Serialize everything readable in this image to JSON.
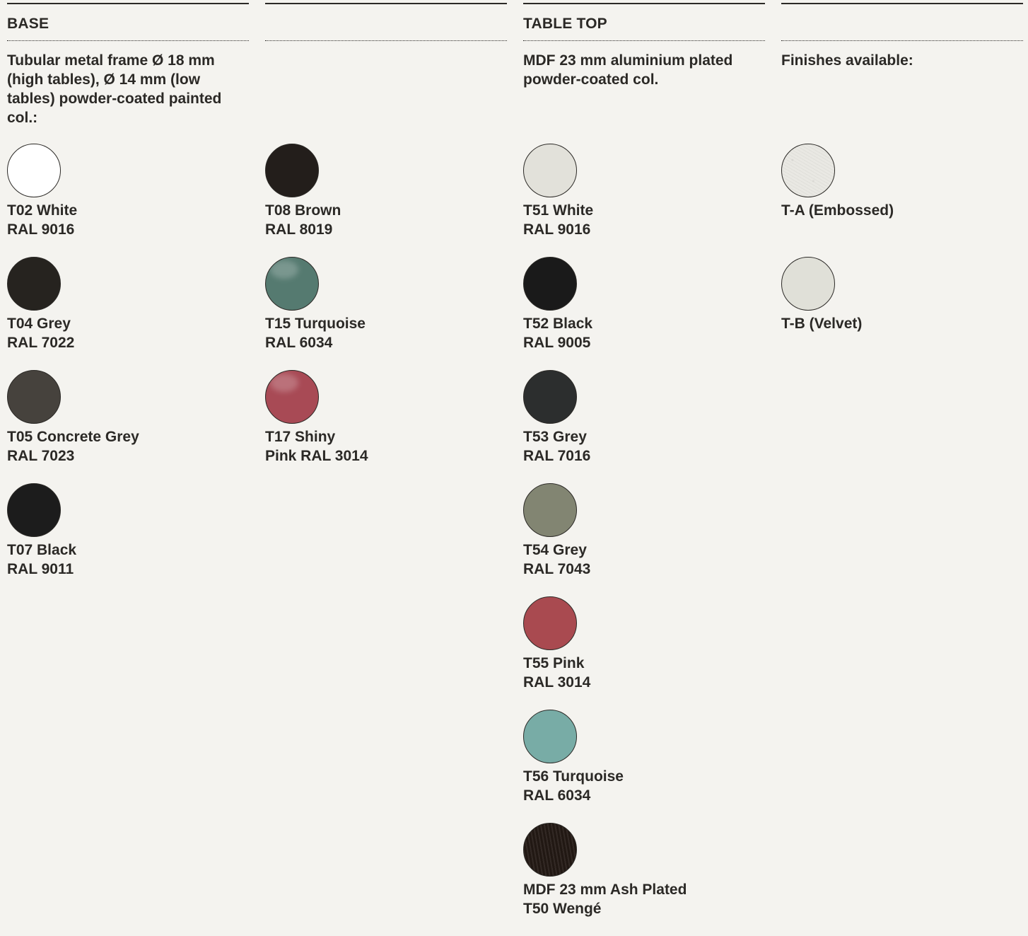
{
  "columns": [
    {
      "heading": "BASE",
      "description": "Tubular metal frame Ø 18 mm (high tables), Ø 14 mm (low tables) powder-coated painted col.:",
      "swatches": [
        {
          "code": "T02 White",
          "ref": "RAL 9016",
          "color": "#ffffff",
          "finish": "plain"
        },
        {
          "code": "T04 Grey",
          "ref": "RAL 7022",
          "color": "#26231f",
          "finish": "plain"
        },
        {
          "code": "T05 Concrete Grey",
          "ref": "RAL 7023",
          "color": "#46423d",
          "finish": "plain"
        },
        {
          "code": "T07 Black",
          "ref": "RAL 9011",
          "color": "#1c1c1c",
          "finish": "plain"
        }
      ]
    },
    {
      "heading": "",
      "description": "",
      "swatches": [
        {
          "code": "T08 Brown",
          "ref": "RAL 8019",
          "color": "#231e1b",
          "finish": "plain"
        },
        {
          "code": "T15 Turquoise",
          "ref": "RAL 6034",
          "color": "#557a70",
          "finish": "gloss"
        },
        {
          "code": "T17 Shiny",
          "ref": "Pink RAL 3014",
          "color": "#a84a55",
          "finish": "gloss"
        }
      ]
    },
    {
      "heading": "TABLE TOP",
      "description": "MDF 23 mm aluminium plated powder-coated col.",
      "swatches": [
        {
          "code": "T51 White",
          "ref": "RAL 9016",
          "color": "#e2e1da",
          "finish": "plain"
        },
        {
          "code": "T52 Black",
          "ref": "RAL 9005",
          "color": "#1a1a1a",
          "finish": "plain"
        },
        {
          "code": "T53 Grey",
          "ref": "RAL 7016",
          "color": "#2c2e2e",
          "finish": "plain"
        },
        {
          "code": "T54 Grey",
          "ref": "RAL 7043",
          "color": "#828572",
          "finish": "plain"
        },
        {
          "code": "T55 Pink",
          "ref": "RAL 3014",
          "color": "#a94a50",
          "finish": "plain"
        },
        {
          "code": "T56 Turquoise",
          "ref": "RAL 6034",
          "color": "#78aca6",
          "finish": "plain"
        },
        {
          "code": "MDF 23 mm Ash Plated",
          "ref": "T50 Wengé",
          "color": "#231914",
          "finish": "wood"
        }
      ]
    },
    {
      "heading": "",
      "description": "Finishes available:",
      "swatches": [
        {
          "code": "T-A (Embossed)",
          "ref": "",
          "color": "#e9e8e3",
          "finish": "embossed"
        },
        {
          "code": "T-B (Velvet)",
          "ref": "",
          "color": "#e0e0d8",
          "finish": "plain"
        }
      ]
    }
  ]
}
